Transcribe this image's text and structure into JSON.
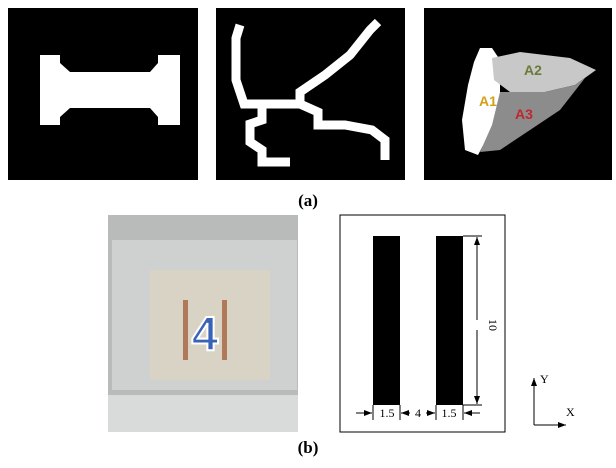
{
  "figure": {
    "panel_a": {
      "label": "(a)",
      "regions": [
        "A1",
        "A2",
        "A3"
      ]
    },
    "panel_b": {
      "label": "(b)",
      "digit": "4",
      "dimensions": [
        "1.5",
        "4",
        "1.5",
        "10"
      ],
      "axes": [
        "Y",
        "X"
      ]
    }
  }
}
